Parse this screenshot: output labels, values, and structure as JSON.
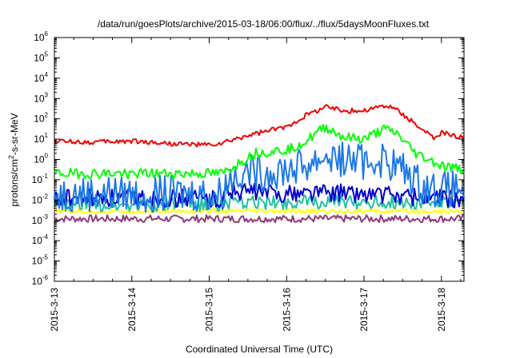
{
  "chart_data": {
    "type": "line",
    "title": "/data/run/goesPlots/archive/2015-03-18/06:00/flux/../flux/5daysMoonFluxes.txt",
    "xlabel": "Coordinated Universal Time (UTC)",
    "ylabel": {
      "pre": "protons/cm",
      "sup": "2",
      "post": "-s-sr-MeV"
    },
    "x_scale": "time",
    "xlim": [
      "2015-03-13",
      "2015-03-18T07:00"
    ],
    "y_scale": "log",
    "ylim": [
      1e-06,
      1000000.0
    ],
    "x_ticks": [
      "2015-3-13",
      "2015-3-14",
      "2015-3-15",
      "2015-3-16",
      "2015-3-17",
      "2015-3-18"
    ],
    "y_ticks": [
      {
        "value": 1e-06,
        "base": "10",
        "exp": "-6"
      },
      {
        "value": 1e-05,
        "base": "10",
        "exp": "-5"
      },
      {
        "value": 0.0001,
        "base": "10",
        "exp": "-4"
      },
      {
        "value": 0.001,
        "base": "10",
        "exp": "-3"
      },
      {
        "value": 0.01,
        "base": "10",
        "exp": "-2"
      },
      {
        "value": 0.1,
        "base": "10",
        "exp": "-1"
      },
      {
        "value": 1.0,
        "base": "10",
        "exp": "0"
      },
      {
        "value": 10.0,
        "base": "10",
        "exp": "1"
      },
      {
        "value": 100.0,
        "base": "10",
        "exp": "2"
      },
      {
        "value": 1000.0,
        "base": "10",
        "exp": "3"
      },
      {
        "value": 10000.0,
        "base": "10",
        "exp": "4"
      },
      {
        "value": 100000.0,
        "base": "10",
        "exp": "5"
      },
      {
        "value": 1000000.0,
        "base": "10",
        "exp": "6"
      }
    ],
    "grid": false,
    "legend": "none",
    "series": [
      {
        "color": "#8e3a7a",
        "noise": 0.18,
        "points": [
          [
            "2015-03-13",
            0.0012
          ],
          [
            "2015-03-14",
            0.0012
          ],
          [
            "2015-03-15",
            0.0012
          ],
          [
            "2015-03-16",
            0.0012
          ],
          [
            "2015-03-17",
            0.0012
          ],
          [
            "2015-03-18T07:00",
            0.0012
          ]
        ]
      },
      {
        "color": "#ffff00",
        "noise": 0.12,
        "points": [
          [
            "2015-03-13",
            0.0028
          ],
          [
            "2015-03-14",
            0.0028
          ],
          [
            "2015-03-15",
            0.0028
          ],
          [
            "2015-03-16",
            0.0028
          ],
          [
            "2015-03-17",
            0.0028
          ],
          [
            "2015-03-18T07:00",
            0.0028
          ]
        ]
      },
      {
        "color": "#20c0a0",
        "noise": 0.35,
        "points": [
          [
            "2015-03-13",
            0.006
          ],
          [
            "2015-03-14",
            0.006
          ],
          [
            "2015-03-15T04:00",
            0.006
          ],
          [
            "2015-03-15T06:00",
            0.007
          ],
          [
            "2015-03-16",
            0.008
          ],
          [
            "2015-03-17",
            0.008
          ],
          [
            "2015-03-18T07:00",
            0.007
          ]
        ]
      },
      {
        "color": "#0000cc",
        "noise": 0.45,
        "points": [
          [
            "2015-03-13",
            0.012
          ],
          [
            "2015-03-14",
            0.012
          ],
          [
            "2015-03-15T04:00",
            0.012
          ],
          [
            "2015-03-15T06:00",
            0.03
          ],
          [
            "2015-03-16",
            0.02
          ],
          [
            "2015-03-16T12:00",
            0.025
          ],
          [
            "2015-03-17",
            0.02
          ],
          [
            "2015-03-17T12:00",
            0.015
          ],
          [
            "2015-03-18",
            0.012
          ],
          [
            "2015-03-18T07:00",
            0.011
          ]
        ]
      },
      {
        "color": "#1e78e6",
        "noise": 0.9,
        "points": [
          [
            "2015-03-13",
            0.02
          ],
          [
            "2015-03-14",
            0.02
          ],
          [
            "2015-03-15T04:00",
            0.02
          ],
          [
            "2015-03-15T06:00",
            0.1
          ],
          [
            "2015-03-15T10:00",
            0.3
          ],
          [
            "2015-03-15T16:00",
            0.2
          ],
          [
            "2015-03-16T06:00",
            0.5
          ],
          [
            "2015-03-16T12:00",
            1.5
          ],
          [
            "2015-03-16T18:00",
            1.0
          ],
          [
            "2015-03-17",
            0.8
          ],
          [
            "2015-03-17T06:00",
            1.0
          ],
          [
            "2015-03-17T12:00",
            0.3
          ],
          [
            "2015-03-17T18:00",
            0.05
          ],
          [
            "2015-03-18",
            0.03
          ],
          [
            "2015-03-18T07:00",
            0.04
          ]
        ]
      },
      {
        "color": "#00ff00",
        "noise": 0.25,
        "points": [
          [
            "2015-03-13",
            0.2
          ],
          [
            "2015-03-14",
            0.2
          ],
          [
            "2015-03-15T04:00",
            0.2
          ],
          [
            "2015-03-15T08:00",
            0.5
          ],
          [
            "2015-03-15T14:00",
            2.0
          ],
          [
            "2015-03-16",
            3.0
          ],
          [
            "2015-03-16T06:00",
            8.0
          ],
          [
            "2015-03-16T12:00",
            40.0
          ],
          [
            "2015-03-16T18:00",
            12.0
          ],
          [
            "2015-03-17",
            10.0
          ],
          [
            "2015-03-17T06:00",
            30.0
          ],
          [
            "2015-03-17T10:00",
            20.0
          ],
          [
            "2015-03-17T16:00",
            2.0
          ],
          [
            "2015-03-18",
            0.5
          ],
          [
            "2015-03-18T07:00",
            0.3
          ]
        ]
      },
      {
        "color": "#ee0000",
        "noise": 0.12,
        "points": [
          [
            "2015-03-13",
            8.0
          ],
          [
            "2015-03-13T12:00",
            7.0
          ],
          [
            "2015-03-14",
            8.0
          ],
          [
            "2015-03-14T12:00",
            6.0
          ],
          [
            "2015-03-15",
            5.0
          ],
          [
            "2015-03-15T04:00",
            6.0
          ],
          [
            "2015-03-15T12:00",
            15.0
          ],
          [
            "2015-03-16",
            40.0
          ],
          [
            "2015-03-16T06:00",
            150.0
          ],
          [
            "2015-03-16T12:00",
            400.0
          ],
          [
            "2015-03-16T18:00",
            250.0
          ],
          [
            "2015-03-17",
            250.0
          ],
          [
            "2015-03-17T06:00",
            450.0
          ],
          [
            "2015-03-17T10:00",
            300.0
          ],
          [
            "2015-03-17T18:00",
            30.0
          ],
          [
            "2015-03-17T22:00",
            10.0
          ],
          [
            "2015-03-18",
            20.0
          ],
          [
            "2015-03-18T07:00",
            12.0
          ]
        ]
      }
    ]
  }
}
